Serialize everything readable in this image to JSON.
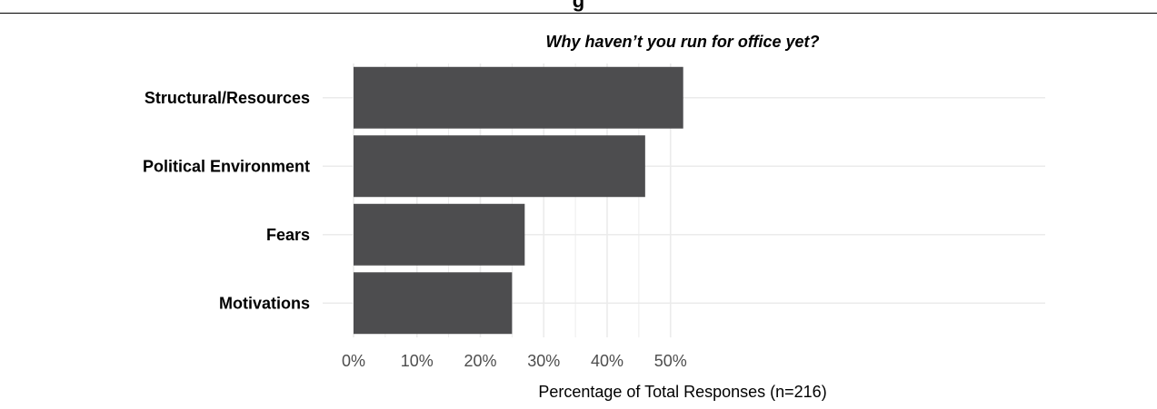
{
  "header": {
    "partial_heading": "g"
  },
  "chart_data": {
    "type": "bar",
    "orientation": "horizontal",
    "title": "Why haven’t you run for office yet?",
    "xlabel": "Percentage of Total Responses (n=216)",
    "ylabel": "",
    "categories": [
      "Structural/Resources",
      "Political Environment",
      "Fears",
      "Motivations"
    ],
    "values": [
      52,
      46,
      27,
      25
    ],
    "value_unit": "%",
    "xlim": [
      0,
      54
    ],
    "xticks": [
      0,
      10,
      20,
      30,
      40,
      50
    ],
    "xtick_labels": [
      "0%",
      "10%",
      "20%",
      "30%",
      "40%",
      "50%"
    ],
    "grid": true,
    "legend": "none",
    "colors": {
      "bar": "#4d4d4f",
      "grid": "#ebebeb",
      "tick_text": "#4d4d4d"
    }
  }
}
